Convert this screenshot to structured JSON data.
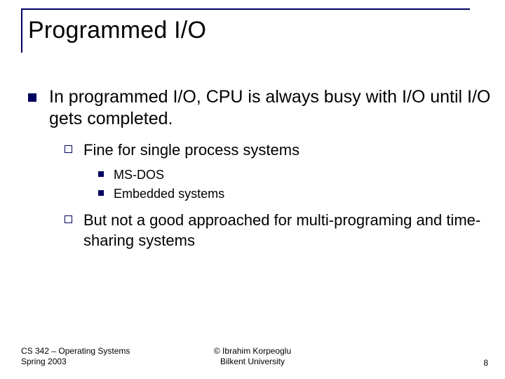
{
  "title": "Programmed I/O",
  "body": {
    "lvl1": "In programmed I/O, CPU is always busy with I/O until I/O gets completed.",
    "lvl2a": "Fine for single process systems",
    "lvl3a": "MS-DOS",
    "lvl3b": "Embedded systems",
    "lvl2b": "But not a good approached for multi-programing and time-sharing systems"
  },
  "footer": {
    "left_line1": "CS 342 – Operating Systems",
    "left_line2": "Spring 2003",
    "center_line1": "© Ibrahim Korpeoglu",
    "center_line2": "Bilkent University",
    "page": "8"
  },
  "colors": {
    "accent": "#000060",
    "text": "#000000",
    "background": "#ffffff"
  }
}
